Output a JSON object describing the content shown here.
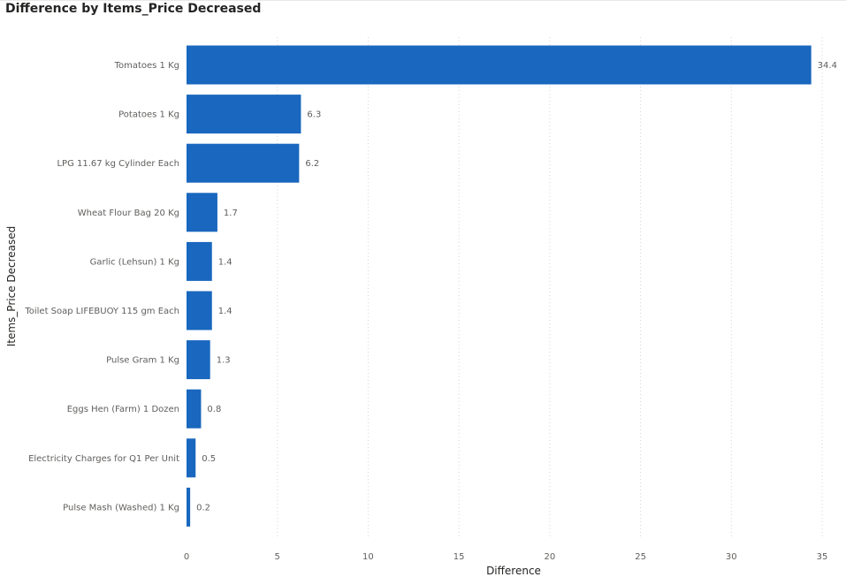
{
  "chart_data": {
    "type": "bar",
    "orientation": "horizontal",
    "title": "Difference by Items_Price Decreased",
    "xlabel": "Difference",
    "ylabel": "Items_Price Decreased",
    "xlim": [
      0,
      35
    ],
    "xticks": [
      0,
      5,
      10,
      15,
      20,
      25,
      30,
      35
    ],
    "grid": true,
    "bar_color": "#1967be",
    "categories": [
      "Tomatoes 1 Kg",
      "Potatoes 1 Kg",
      "LPG 11.67 kg Cylinder Each",
      "Wheat Flour Bag 20 Kg",
      "Garlic (Lehsun) 1 Kg",
      "Toilet Soap LIFEBUOY 115 gm Each",
      "Pulse Gram 1 Kg",
      "Eggs Hen (Farm) 1 Dozen",
      "Electricity Charges for Q1 Per Unit",
      "Pulse Mash (Washed) 1 Kg"
    ],
    "values": [
      34.4,
      6.3,
      6.2,
      1.7,
      1.4,
      1.4,
      1.3,
      0.8,
      0.5,
      0.2
    ],
    "data_labels": [
      "34.4",
      "6.3",
      "6.2",
      "1.7",
      "1.4",
      "1.4",
      "1.3",
      "0.8",
      "0.5",
      "0.2"
    ]
  }
}
